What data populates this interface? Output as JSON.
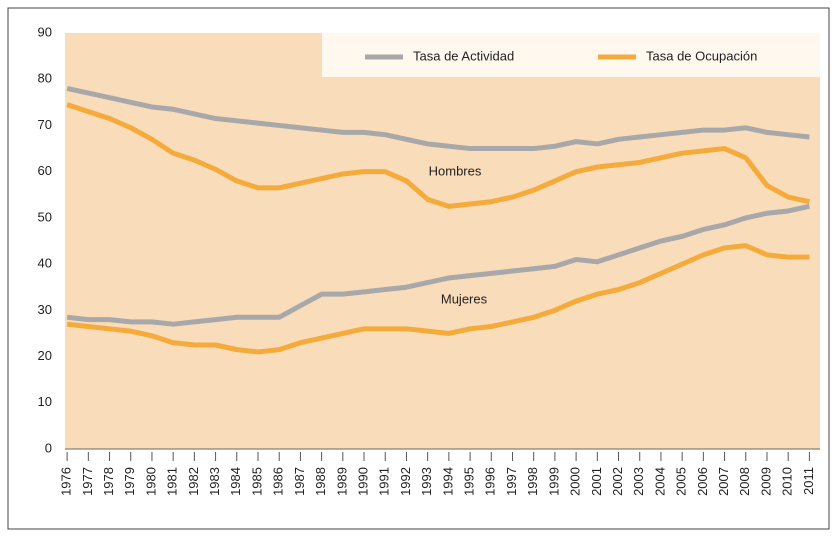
{
  "chart_data": {
    "type": "line",
    "groups": [
      "Hombres",
      "Mujeres"
    ],
    "x": [
      1976,
      1977,
      1978,
      1979,
      1980,
      1981,
      1982,
      1983,
      1984,
      1985,
      1986,
      1987,
      1988,
      1989,
      1990,
      1991,
      1992,
      1993,
      1994,
      1995,
      1996,
      1997,
      1998,
      1999,
      2000,
      2001,
      2002,
      2003,
      2004,
      2005,
      2006,
      2007,
      2008,
      2009,
      2010,
      2011
    ],
    "series": [
      {
        "name": "Tasa de Actividad",
        "color": "#a8a8aa",
        "values": [
          [
            78,
            77,
            76,
            75,
            74,
            73.5,
            72.5,
            71.5,
            71,
            70.5,
            70,
            69.5,
            69,
            68.5,
            68.5,
            68,
            67,
            66,
            65.5,
            65,
            65,
            65,
            65,
            65.5,
            66.5,
            66,
            67,
            67.5,
            68,
            68.5,
            69,
            69,
            69.5,
            68.5,
            68,
            67.5
          ],
          [
            28.5,
            28,
            28,
            27.5,
            27.5,
            27,
            27.5,
            28,
            28.5,
            28.5,
            28.5,
            31,
            33.5,
            33.5,
            34,
            34.5,
            35,
            36,
            37,
            37.5,
            38,
            38.5,
            39,
            39.5,
            41,
            40.5,
            42,
            43.5,
            45,
            46,
            47.5,
            48.5,
            50,
            51,
            51.5,
            52.5
          ]
        ]
      },
      {
        "name": "Tasa de Ocupación",
        "color": "#f5aa3c",
        "values": [
          [
            74.5,
            73,
            71.5,
            69.5,
            67,
            64,
            62.5,
            60.5,
            58,
            56.5,
            56.5,
            57.5,
            58.5,
            59.5,
            60,
            60,
            58,
            54,
            52.5,
            53,
            53.5,
            54.5,
            56,
            58,
            60,
            61,
            61.5,
            62,
            63,
            64,
            64.5,
            65,
            63,
            57,
            54.5,
            53.5
          ],
          [
            27,
            26.5,
            26,
            25.5,
            24.5,
            23,
            22.5,
            22.5,
            21.5,
            21,
            21.5,
            23,
            24,
            25,
            26,
            26,
            26,
            25.5,
            25,
            26,
            26.5,
            27.5,
            28.5,
            30,
            32,
            33.5,
            34.5,
            36,
            38,
            40,
            42,
            43.5,
            44,
            42,
            41.5,
            41.5
          ]
        ]
      }
    ],
    "xlim": [
      1975.9,
      2011.5
    ],
    "xticks": [
      1976,
      1977,
      1978,
      1979,
      1980,
      1981,
      1982,
      1983,
      1984,
      1985,
      1986,
      1987,
      1988,
      1989,
      1990,
      1991,
      1992,
      1993,
      1994,
      1995,
      1996,
      1997,
      1998,
      1999,
      2000,
      2001,
      2002,
      2003,
      2004,
      2005,
      2006,
      2007,
      2008,
      2009,
      2010,
      2011
    ],
    "ylim": [
      0,
      90
    ],
    "yticks": [
      0,
      10,
      20,
      30,
      40,
      50,
      60,
      70,
      80,
      90
    ],
    "grid": false,
    "legend": "top-right"
  }
}
